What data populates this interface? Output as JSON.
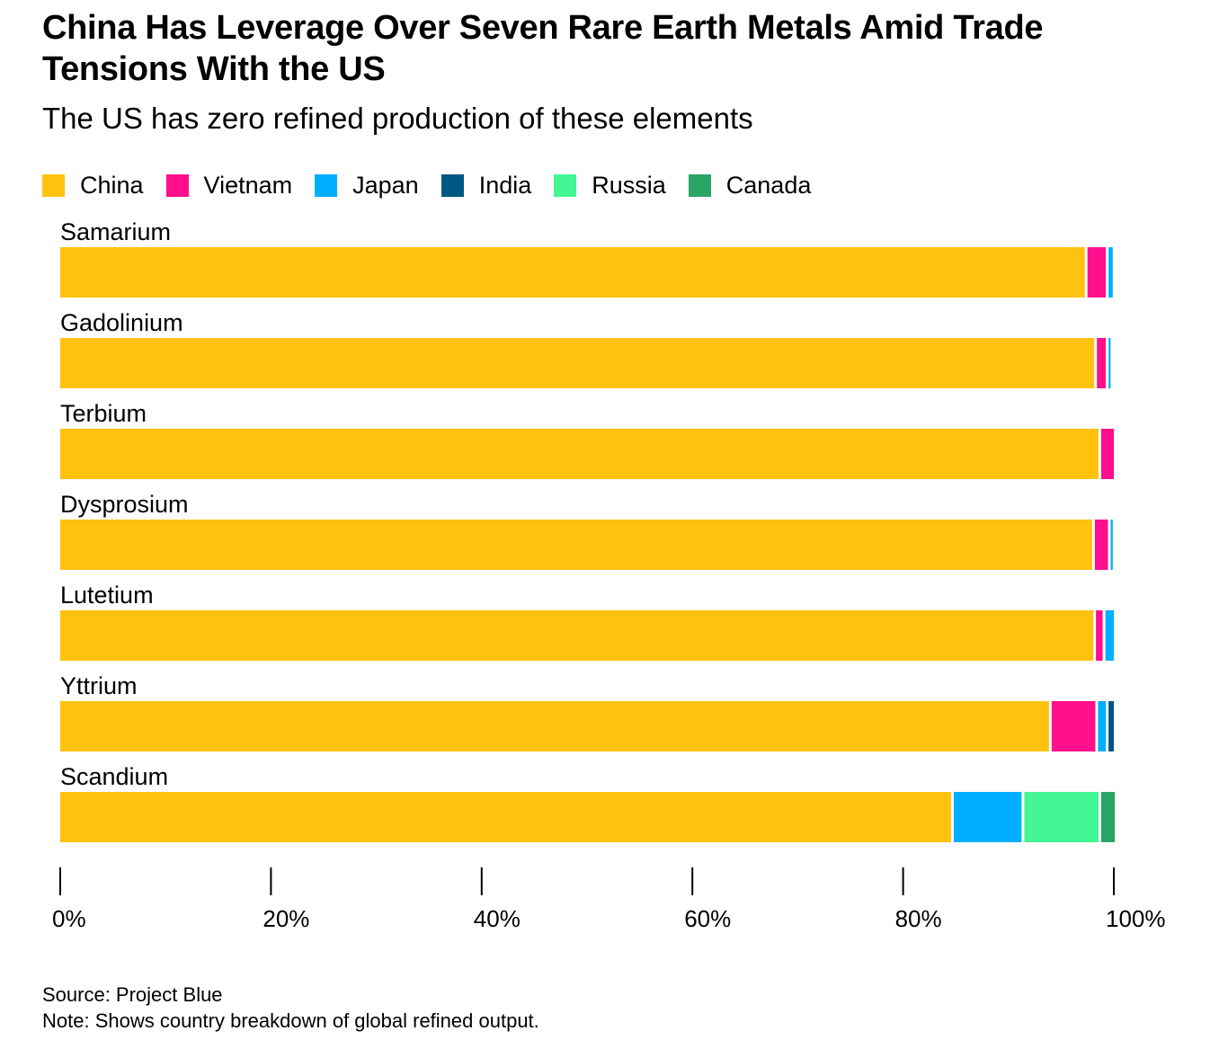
{
  "title": "China Has Leverage Over Seven Rare Earth Metals Amid Trade Tensions With the US",
  "subtitle": "The US has zero refined production of these elements",
  "legend": [
    {
      "name": "China",
      "color": "#FFC20E"
    },
    {
      "name": "Vietnam",
      "color": "#FF0F8C"
    },
    {
      "name": "Japan",
      "color": "#00AEFF"
    },
    {
      "name": "India",
      "color": "#005683"
    },
    {
      "name": "Russia",
      "color": "#42F693"
    },
    {
      "name": "Canada",
      "color": "#2AA566"
    }
  ],
  "chart_data": {
    "type": "bar",
    "orientation": "horizontal",
    "stacked": true,
    "title": "China Has Leverage Over Seven Rare Earth Metals Amid Trade Tensions With the US",
    "subtitle": "The US has zero refined production of these elements",
    "categories": [
      "Samarium",
      "Gadolinium",
      "Terbium",
      "Dysprosium",
      "Lutetium",
      "Yttrium",
      "Scandium"
    ],
    "series": [
      {
        "name": "China",
        "color": "#FFC20E",
        "values": [
          97.5,
          98.4,
          98.8,
          98.2,
          98.3,
          94.1,
          84.8
        ]
      },
      {
        "name": "Vietnam",
        "color": "#FF0F8C",
        "values": [
          2.0,
          1.1,
          1.2,
          1.5,
          0.9,
          4.4,
          0
        ]
      },
      {
        "name": "Japan",
        "color": "#00AEFF",
        "values": [
          0.4,
          0.2,
          0,
          0.2,
          0.8,
          1.0,
          6.7
        ]
      },
      {
        "name": "India",
        "color": "#005683",
        "values": [
          0,
          0,
          0,
          0,
          0,
          0.5,
          0
        ]
      },
      {
        "name": "Russia",
        "color": "#42F693",
        "values": [
          0,
          0,
          0,
          0,
          0,
          0,
          7.3
        ]
      },
      {
        "name": "Canada",
        "color": "#2AA566",
        "values": [
          0,
          0,
          0,
          0,
          0,
          0,
          1.3
        ]
      }
    ],
    "xlim": [
      0,
      100
    ],
    "xticks": [
      "0%",
      "20%",
      "40%",
      "60%",
      "80%",
      "100%"
    ],
    "xlabel": "",
    "ylabel": "",
    "legend_position": "top-left",
    "grid": false
  },
  "footer": {
    "source": "Source: Project Blue",
    "note": "Note: Shows country breakdown of global refined output."
  }
}
